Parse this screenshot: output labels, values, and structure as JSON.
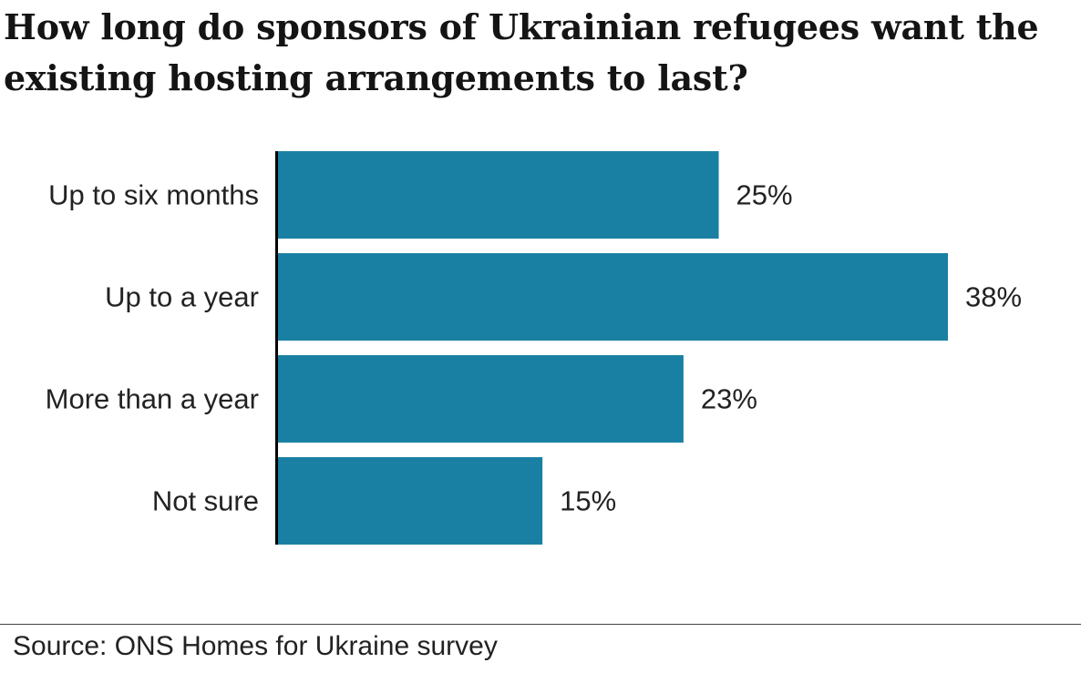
{
  "chart_data": {
    "type": "bar",
    "orientation": "horizontal",
    "title": "How long do sponsors of Ukrainian refugees want the existing hosting arrangements to last?",
    "categories": [
      "Up to six months",
      "Up to a year",
      "More than a year",
      "Not sure"
    ],
    "values": [
      25,
      38,
      23,
      15
    ],
    "value_labels": [
      "25%",
      "38%",
      "23%",
      "15%"
    ],
    "unit": "%",
    "xlim": [
      0,
      38
    ],
    "grid": false,
    "legend": "none",
    "bar_color": "#1a80a3",
    "axis_color": "#000000"
  },
  "source": "Source: ONS Homes for Ukraine survey"
}
